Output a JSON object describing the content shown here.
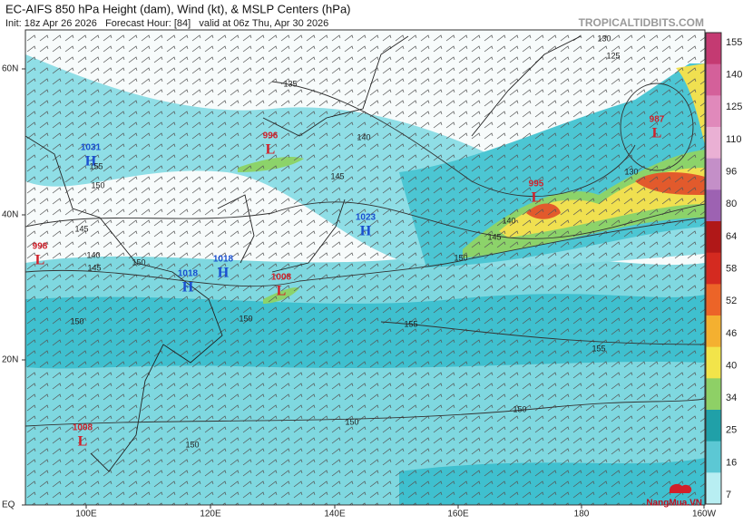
{
  "header": {
    "title": "EC-AIFS 850 hPa Height (dam), Wind (kt), & MSLP Centers (hPa)",
    "subtitle": "Init: 18z Apr 26 2026   Forecast Hour: [84]   valid at 06z Thu, Apr 30 2026",
    "brand": "TROPICALTIDBITS.COM"
  },
  "axes": {
    "lat_labels": [
      "60N",
      "40N",
      "20N",
      "EQ"
    ],
    "lon_labels": [
      "100E",
      "120E",
      "140E",
      "160E",
      "180",
      "160W"
    ]
  },
  "colorbar": {
    "labels": [
      "155",
      "140",
      "125",
      "110",
      "96",
      "80",
      "64",
      "58",
      "52",
      "46",
      "40",
      "34",
      "25",
      "16",
      "7"
    ]
  },
  "centers": [
    {
      "value": "1031",
      "symbol": "H"
    },
    {
      "value": "998",
      "symbol": "L"
    },
    {
      "value": "996",
      "symbol": "L"
    },
    {
      "value": "1018",
      "symbol": "H"
    },
    {
      "value": "1018",
      "symbol": "H"
    },
    {
      "value": "1008",
      "symbol": "L"
    },
    {
      "value": "1023",
      "symbol": "H"
    },
    {
      "value": "995",
      "symbol": "L"
    },
    {
      "value": "987",
      "symbol": "L"
    },
    {
      "value": "1008",
      "symbol": "L"
    }
  ],
  "contour_labels": [
    "135",
    "125",
    "130",
    "130",
    "140",
    "145",
    "145",
    "140",
    "155",
    "150",
    "145",
    "140",
    "145",
    "150",
    "150",
    "155",
    "155",
    "150",
    "150",
    "150",
    "150",
    "150"
  ],
  "watermark": "NangMua.VN"
}
